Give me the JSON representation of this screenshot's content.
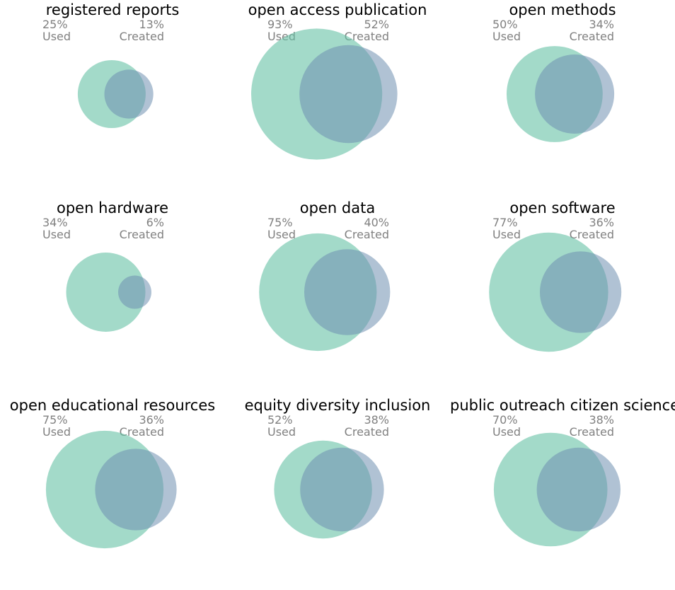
{
  "chart_data": {
    "type": "venn",
    "series_labels": {
      "used": "Used",
      "created": "Created"
    },
    "colors": {
      "used": "#66c2a5",
      "created": "#7090b0"
    },
    "panels": [
      {
        "title": "registered reports",
        "used_pct": "25%",
        "created_pct": "13%",
        "used": 25,
        "created": 13
      },
      {
        "title": "open access publication",
        "used_pct": "93%",
        "created_pct": "52%",
        "used": 93,
        "created": 52
      },
      {
        "title": "open methods",
        "used_pct": "50%",
        "created_pct": "34%",
        "used": 50,
        "created": 34
      },
      {
        "title": "open hardware",
        "used_pct": "34%",
        "created_pct": "6%",
        "used": 34,
        "created": 6
      },
      {
        "title": "open data",
        "used_pct": "75%",
        "created_pct": "40%",
        "used": 75,
        "created": 40
      },
      {
        "title": "open software",
        "used_pct": "77%",
        "created_pct": "36%",
        "used": 77,
        "created": 36
      },
      {
        "title": "open educational resources",
        "used_pct": "75%",
        "created_pct": "36%",
        "used": 75,
        "created": 36
      },
      {
        "title": "equity diversity inclusion",
        "used_pct": "52%",
        "created_pct": "38%",
        "used": 52,
        "created": 38
      },
      {
        "title": "public outreach citizen science",
        "used_pct": "70%",
        "created_pct": "38%",
        "used": 70,
        "created": 38
      }
    ]
  }
}
